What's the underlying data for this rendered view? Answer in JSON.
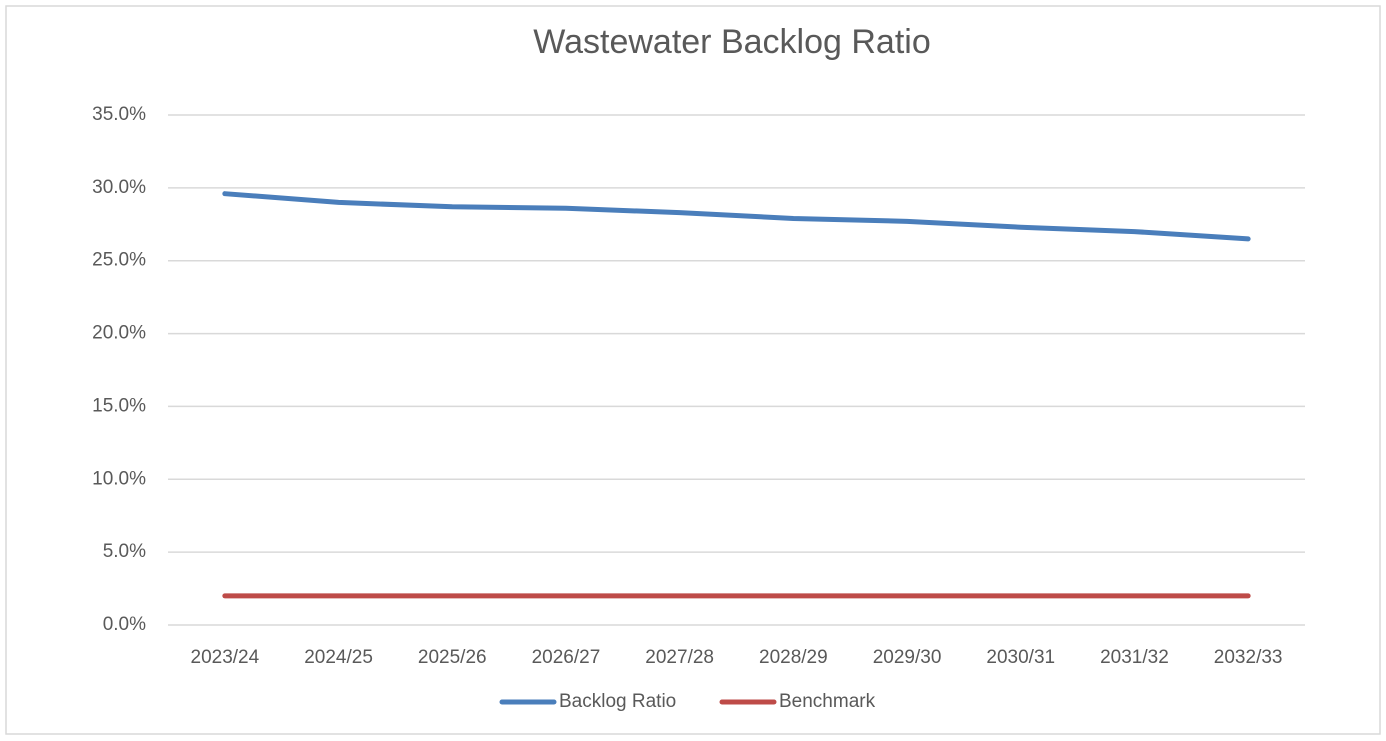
{
  "chart_data": {
    "type": "line",
    "title": "Wastewater Backlog Ratio",
    "categories": [
      "2023/24",
      "2024/25",
      "2025/26",
      "2026/27",
      "2027/28",
      "2028/29",
      "2029/30",
      "2030/31",
      "2031/32",
      "2032/33"
    ],
    "series": [
      {
        "name": "Backlog Ratio",
        "color": "#4a7ebb",
        "values": [
          29.6,
          29.0,
          28.7,
          28.6,
          28.3,
          27.9,
          27.7,
          27.3,
          27.0,
          26.5
        ]
      },
      {
        "name": "Benchmark",
        "color": "#be4b48",
        "values": [
          2.0,
          2.0,
          2.0,
          2.0,
          2.0,
          2.0,
          2.0,
          2.0,
          2.0,
          2.0
        ]
      }
    ],
    "ylim": [
      0,
      35
    ],
    "yticks": [
      {
        "value": 0,
        "label": "0.0%"
      },
      {
        "value": 5,
        "label": "5.0%"
      },
      {
        "value": 10,
        "label": "10.0%"
      },
      {
        "value": 15,
        "label": "15.0%"
      },
      {
        "value": 20,
        "label": "20.0%"
      },
      {
        "value": 25,
        "label": "25.0%"
      },
      {
        "value": 30,
        "label": "30.0%"
      },
      {
        "value": 35,
        "label": "35.0%"
      }
    ],
    "grid": true,
    "legend": "bottom"
  }
}
